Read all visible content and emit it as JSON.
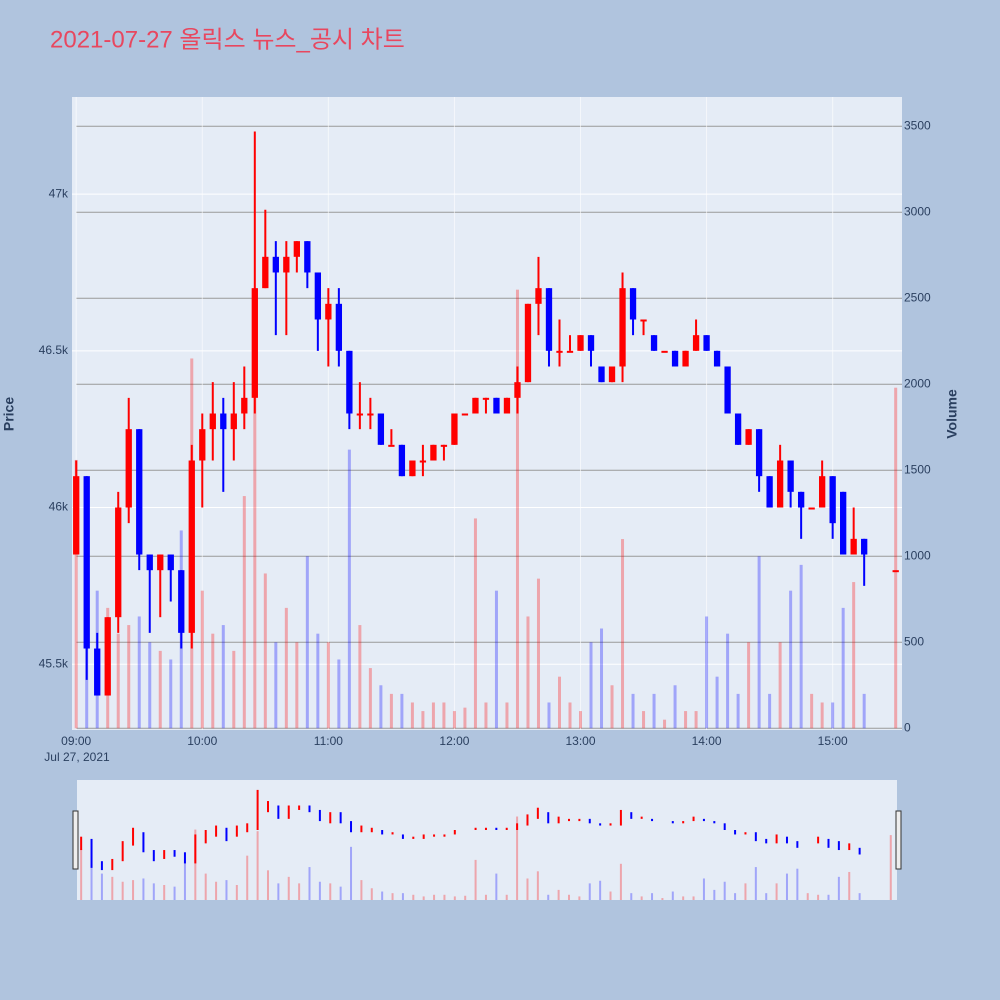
{
  "chart_data": {
    "type": "candlestick",
    "title": "2021-07-27 올릭스 뉴스_공시 차트",
    "ylabel": "Price",
    "y2label": "Volume",
    "x": [
      "2021-07-27 09:00",
      "2021-07-27 09:05",
      "2021-07-27 09:10",
      "2021-07-27 09:15",
      "2021-07-27 09:20",
      "2021-07-27 09:25",
      "2021-07-27 09:30",
      "2021-07-27 09:35",
      "2021-07-27 09:40",
      "2021-07-27 09:45",
      "2021-07-27 09:50",
      "2021-07-27 09:55",
      "2021-07-27 10:00",
      "2021-07-27 10:05",
      "2021-07-27 10:10",
      "2021-07-27 10:15",
      "2021-07-27 10:20",
      "2021-07-27 10:25",
      "2021-07-27 10:30",
      "2021-07-27 10:35",
      "2021-07-27 10:40",
      "2021-07-27 10:45",
      "2021-07-27 10:50",
      "2021-07-27 10:55",
      "2021-07-27 11:00",
      "2021-07-27 11:05",
      "2021-07-27 11:10",
      "2021-07-27 11:15",
      "2021-07-27 11:20",
      "2021-07-27 11:25",
      "2021-07-27 11:30",
      "2021-07-27 11:35",
      "2021-07-27 11:40",
      "2021-07-27 11:45",
      "2021-07-27 11:50",
      "2021-07-27 11:55",
      "2021-07-27 12:00",
      "2021-07-27 12:05",
      "2021-07-27 12:10",
      "2021-07-27 12:15",
      "2021-07-27 12:20",
      "2021-07-27 12:25",
      "2021-07-27 12:30",
      "2021-07-27 12:35",
      "2021-07-27 12:40",
      "2021-07-27 12:45",
      "2021-07-27 12:50",
      "2021-07-27 12:55",
      "2021-07-27 13:00",
      "2021-07-27 13:05",
      "2021-07-27 13:10",
      "2021-07-27 13:15",
      "2021-07-27 13:20",
      "2021-07-27 13:25",
      "2021-07-27 13:30",
      "2021-07-27 13:35",
      "2021-07-27 13:40",
      "2021-07-27 13:45",
      "2021-07-27 13:50",
      "2021-07-27 13:55",
      "2021-07-27 14:00",
      "2021-07-27 14:05",
      "2021-07-27 14:10",
      "2021-07-27 14:15",
      "2021-07-27 14:20",
      "2021-07-27 14:25",
      "2021-07-27 14:30",
      "2021-07-27 14:35",
      "2021-07-27 14:40",
      "2021-07-27 14:45",
      "2021-07-27 14:50",
      "2021-07-27 14:55",
      "2021-07-27 15:00",
      "2021-07-27 15:05",
      "2021-07-27 15:10",
      "2021-07-27 15:15",
      "2021-07-27 15:30"
    ],
    "open": [
      45850,
      46100,
      45550,
      45400,
      45650,
      46000,
      46250,
      45850,
      45800,
      45850,
      45800,
      45600,
      46150,
      46250,
      46300,
      46250,
      46300,
      46350,
      46700,
      46800,
      46750,
      46800,
      46850,
      46750,
      46600,
      46650,
      46500,
      46300,
      46300,
      46300,
      46200,
      46200,
      46100,
      46150,
      46150,
      46200,
      46200,
      46300,
      46300,
      46350,
      46350,
      46300,
      46350,
      46400,
      46650,
      46700,
      46500,
      46500,
      46500,
      46550,
      46450,
      46400,
      46450,
      46700,
      46600,
      46550,
      46500,
      46500,
      46450,
      46500,
      46550,
      46500,
      46450,
      46300,
      46200,
      46250,
      46100,
      46000,
      46150,
      46050,
      46000,
      46000,
      46100,
      46050,
      45850,
      45900,
      45800
    ],
    "high": [
      46150,
      46100,
      45600,
      45650,
      46050,
      46350,
      46250,
      45850,
      45850,
      45850,
      45800,
      46200,
      46300,
      46400,
      46350,
      46400,
      46450,
      47200,
      46950,
      46850,
      46850,
      46850,
      46850,
      46750,
      46700,
      46700,
      46500,
      46400,
      46350,
      46300,
      46250,
      46200,
      46150,
      46200,
      46200,
      46200,
      46300,
      46300,
      46350,
      46350,
      46350,
      46350,
      46450,
      46650,
      46800,
      46700,
      46600,
      46550,
      46550,
      46550,
      46450,
      46450,
      46750,
      46700,
      46600,
      46550,
      46500,
      46500,
      46500,
      46600,
      46550,
      46500,
      46450,
      46300,
      46250,
      46250,
      46100,
      46200,
      46150,
      46050,
      46000,
      46150,
      46100,
      46050,
      46000,
      45900,
      45800
    ],
    "low": [
      45850,
      45450,
      45400,
      45400,
      45600,
      45950,
      45800,
      45600,
      45650,
      45700,
      45550,
      45550,
      46000,
      46150,
      46050,
      46150,
      46250,
      46300,
      46700,
      46550,
      46550,
      46750,
      46700,
      46500,
      46450,
      46450,
      46250,
      46250,
      46250,
      46200,
      46200,
      46100,
      46100,
      46100,
      46150,
      46150,
      46200,
      46300,
      46300,
      46300,
      46300,
      46300,
      46300,
      46400,
      46550,
      46450,
      46450,
      46500,
      46500,
      46450,
      46400,
      46400,
      46400,
      46550,
      46550,
      46500,
      46500,
      46450,
      46450,
      46500,
      46500,
      46450,
      46300,
      46200,
      46200,
      46050,
      46000,
      46000,
      46000,
      45900,
      46000,
      46000,
      45900,
      45850,
      45850,
      45750,
      45800
    ],
    "close": [
      46100,
      45550,
      45400,
      45650,
      46000,
      46250,
      45850,
      45800,
      45850,
      45800,
      45600,
      46150,
      46250,
      46300,
      46250,
      46300,
      46350,
      46700,
      46800,
      46750,
      46800,
      46850,
      46750,
      46600,
      46650,
      46500,
      46300,
      46300,
      46300,
      46200,
      46200,
      46100,
      46150,
      46150,
      46200,
      46200,
      46300,
      46300,
      46350,
      46350,
      46300,
      46350,
      46400,
      46650,
      46700,
      46500,
      46500,
      46500,
      46550,
      46500,
      46400,
      46450,
      46700,
      46600,
      46600,
      46500,
      46500,
      46450,
      46500,
      46550,
      46500,
      46450,
      46300,
      46200,
      46250,
      46100,
      46000,
      46150,
      46050,
      46000,
      46000,
      46100,
      45950,
      45850,
      45900,
      45850,
      45800
    ],
    "volume": [
      1560,
      1100,
      800,
      700,
      550,
      600,
      650,
      500,
      450,
      400,
      1150,
      2150,
      800,
      550,
      600,
      450,
      1350,
      2100,
      900,
      500,
      700,
      500,
      1000,
      550,
      500,
      400,
      1620,
      600,
      350,
      250,
      200,
      200,
      150,
      100,
      150,
      150,
      100,
      120,
      1220,
      150,
      800,
      150,
      2550,
      650,
      870,
      150,
      300,
      150,
      100,
      500,
      580,
      250,
      1100,
      200,
      100,
      200,
      50,
      250,
      100,
      100,
      650,
      300,
      550,
      200,
      500,
      1000,
      200,
      500,
      800,
      950,
      200,
      150,
      150,
      700,
      850,
      200,
      1980
    ],
    "increasing_color": "#ff0000",
    "decreasing_color": "#0000ff",
    "xlim": [
      "2021-07-27 08:58",
      "2021-07-27 15:33"
    ],
    "xticks": [
      {
        "value": "2021-07-27 09:00",
        "label": "09:00"
      },
      {
        "value": "2021-07-27 10:00",
        "label": "10:00"
      },
      {
        "value": "2021-07-27 11:00",
        "label": "11:00"
      },
      {
        "value": "2021-07-27 12:00",
        "label": "12:00"
      },
      {
        "value": "2021-07-27 13:00",
        "label": "13:00"
      },
      {
        "value": "2021-07-27 14:00",
        "label": "14:00"
      },
      {
        "value": "2021-07-27 15:00",
        "label": "15:00"
      }
    ],
    "x_date_label": "Jul 27, 2021",
    "ylim": [
      45290,
      47310
    ],
    "yticks": [
      {
        "value": 45500,
        "label": "45.5k"
      },
      {
        "value": 46000,
        "label": "46k"
      },
      {
        "value": 46500,
        "label": "46.5k"
      },
      {
        "value": 47000,
        "label": "47k"
      }
    ],
    "y2lim": [
      -10,
      3670
    ],
    "y2ticks": [
      0,
      500,
      1000,
      1500,
      2000,
      2500,
      3000,
      3500
    ],
    "grid": true,
    "rangeslider": true
  }
}
